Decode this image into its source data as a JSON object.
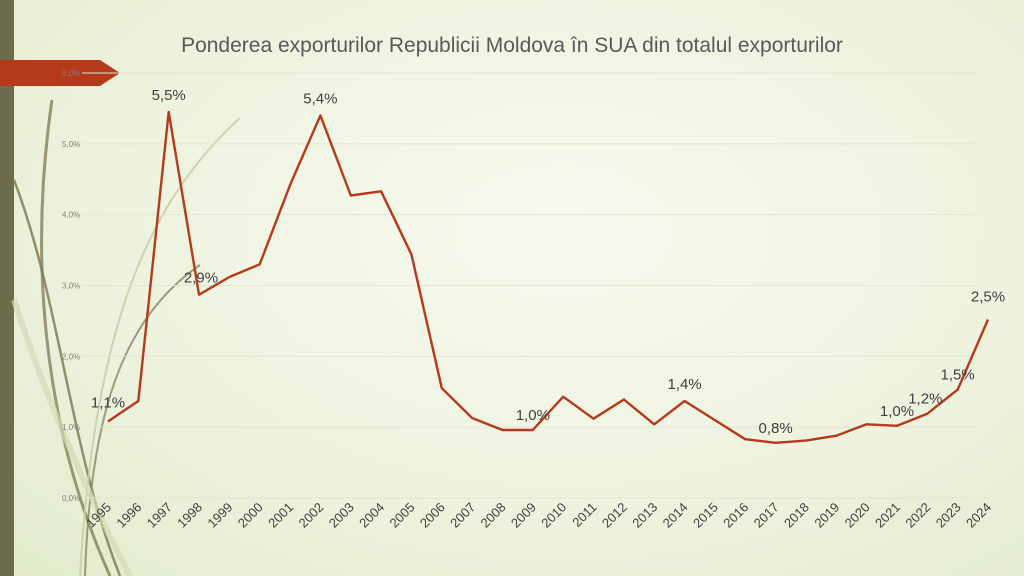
{
  "slide": {
    "title": "Ponderea exporturilor Republicii Moldova în SUA din totalul exporturilor",
    "accent_color": "#b5391b",
    "sidebar_color": "#6e6a4c",
    "decor_icon": "curved-lines-decor"
  },
  "chart_data": {
    "type": "line",
    "title": "Ponderea exporturilor Republicii Moldova în SUA din totalul exporturilor",
    "xlabel": "",
    "ylabel": "",
    "x": [
      "1995",
      "1996",
      "1997",
      "1998",
      "1999",
      "2000",
      "2001",
      "2002",
      "2003",
      "2004",
      "2005",
      "2006",
      "2007",
      "2008",
      "2009",
      "2010",
      "2011",
      "2012",
      "2013",
      "2014",
      "2015",
      "2016",
      "2017",
      "2018",
      "2019",
      "2020",
      "2021",
      "2022",
      "2023",
      "2024"
    ],
    "series": [
      {
        "color": "#b5391b",
        "values": [
          1.08,
          1.37,
          5.45,
          2.87,
          3.12,
          3.3,
          4.42,
          5.4,
          4.27,
          4.33,
          3.44,
          1.55,
          1.13,
          0.96,
          0.96,
          1.43,
          1.12,
          1.39,
          1.04,
          1.37,
          1.1,
          0.83,
          0.78,
          0.81,
          0.88,
          1.04,
          1.02,
          1.19,
          1.53,
          2.52
        ]
      }
    ],
    "data_labels": [
      {
        "index": 0,
        "text": "1,1%"
      },
      {
        "index": 2,
        "text": "5,5%"
      },
      {
        "index": 3,
        "text": "2,9%"
      },
      {
        "index": 7,
        "text": "5,4%"
      },
      {
        "index": 14,
        "text": "1,0%"
      },
      {
        "index": 19,
        "text": "1,4%"
      },
      {
        "index": 22,
        "text": "0,8%"
      },
      {
        "index": 26,
        "text": "1,0%"
      },
      {
        "index": 27,
        "text": "1,2%"
      },
      {
        "index": 28,
        "text": "1,5%"
      },
      {
        "index": 29,
        "text": "2,5%"
      }
    ],
    "yticks": [
      "0,0%",
      "1,0%",
      "2,0%",
      "3,0%",
      "4,0%",
      "5,0%",
      "6,0%"
    ],
    "ylim": [
      0,
      6
    ],
    "grid": true,
    "legend": "none"
  }
}
